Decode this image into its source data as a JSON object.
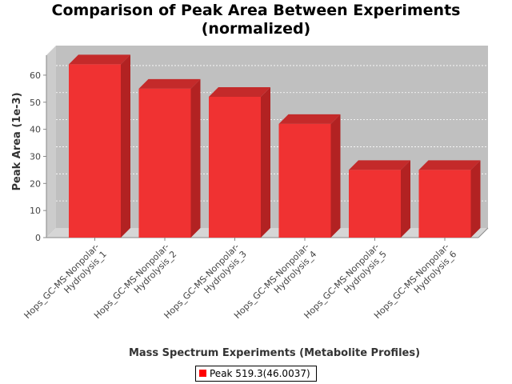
{
  "chart_data": {
    "type": "bar",
    "title_lines": [
      "Comparison of Peak Area Between Experiments",
      "(normalized)"
    ],
    "xlabel": "Mass Spectrum Experiments (Metabolite Profiles)",
    "ylabel": "Peak Area (1e-3)",
    "categories": [
      "Hops_GC-MS-Nonpolar-Hydrolysis_1",
      "Hops_GC-MS-Nonpolar-Hydrolysis_2",
      "Hops_GC-MS-Nonpolar-Hydrolysis_3",
      "Hops_GC-MS-Nonpolar-Hydrolysis_4",
      "Hops_GC-MS-Nonpolar-Hydrolysis_5",
      "Hops_GC-MS-Nonpolar-Hydrolysis_6"
    ],
    "category_label_lines": [
      [
        "Hops_GC-MS-Nonpolar-",
        "Hydrolysis_1"
      ],
      [
        "Hops_GC-MS-Nonpolar-",
        "Hydrolysis_2"
      ],
      [
        "Hops_GC-MS-Nonpolar-",
        "Hydrolysis_3"
      ],
      [
        "Hops_GC-MS-Nonpolar-",
        "Hydrolysis_4"
      ],
      [
        "Hops_GC-MS-Nonpolar-",
        "Hydrolysis_5"
      ],
      [
        "Hops_GC-MS-Nonpolar-",
        "Hydrolysis_6"
      ]
    ],
    "series": [
      {
        "name": "Peak 519.3(46.0037)",
        "values": [
          64,
          55,
          52,
          42,
          25,
          25
        ]
      }
    ],
    "ylim": [
      0,
      65
    ],
    "yticks": [
      0,
      10,
      20,
      30,
      40,
      50,
      60
    ],
    "grid": true,
    "legend_position": "bottom-center",
    "bar_3d": true,
    "colors": {
      "bar_front": "#f03232",
      "bar_side": "#b22222",
      "bar_top": "#c42a2a",
      "plot_back": "#c0c0c0",
      "plot_floor": "#d6d6d6",
      "plot_wall": "#cccccc"
    }
  }
}
